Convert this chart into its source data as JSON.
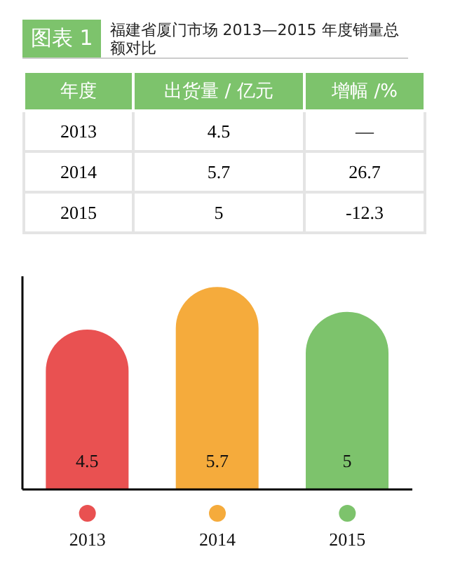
{
  "chart_data": [
    {
      "type": "other",
      "title": "图表 1",
      "subtitle": "福建省厦门市场 2013—2015 年度销量总额对比",
      "xlabel": "年度",
      "categories": [
        "2013",
        "2014",
        "2015"
      ],
      "data_labels": true,
      "series": [
        {
          "name": "出货量 / 亿元",
          "values": [
            4.5,
            5.7,
            5
          ]
        },
        {
          "name": "增幅 /%",
          "values": [
            null,
            26.7,
            -12.3
          ],
          "value_labels": [
            "—",
            "26.7",
            "-12.3"
          ]
        }
      ]
    },
    {
      "type": "bar",
      "categories": [
        "2013",
        "2014",
        "2015"
      ],
      "values": [
        4.5,
        5.7,
        5
      ],
      "colors": [
        "#e95151",
        "#f5ab3c",
        "#7dc36c"
      ],
      "data_labels": true,
      "ylim": [
        0,
        6
      ],
      "tick_labels": "x"
    }
  ]
}
